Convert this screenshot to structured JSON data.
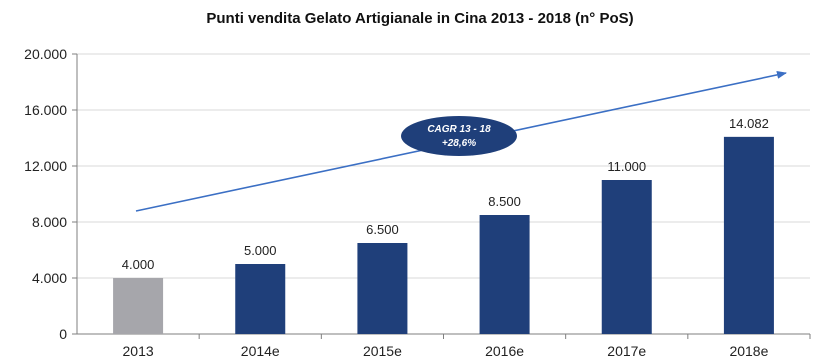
{
  "chart_data": {
    "type": "bar",
    "title": "Punti vendita Gelato Artigianale in Cina 2013 - 2018 (n° PoS)",
    "xlabel": "",
    "ylabel": "",
    "categories": [
      "2013",
      "2014e",
      "2015e",
      "2016e",
      "2017e",
      "2018e"
    ],
    "values": [
      4000,
      5000,
      6500,
      8500,
      11000,
      14082
    ],
    "value_labels": [
      "4.000",
      "5.000",
      "6.500",
      "8.500",
      "11.000",
      "14.082"
    ],
    "ylim": [
      0,
      20000
    ],
    "yticks": [
      0,
      4000,
      8000,
      12000,
      16000,
      20000
    ],
    "ytick_labels": [
      "0",
      "4.000",
      "8.000",
      "12.000",
      "16.000",
      "20.000"
    ],
    "grid": true,
    "annotation": {
      "line1": "CAGR 13 - 18",
      "line2": "+28,6%"
    },
    "colors": {
      "actual": "#a6a6ab",
      "estimate": "#1f3f7a",
      "trend_arrow": "#3b6fc4",
      "annotation_fill": "#1f3f7a",
      "grid": "#d9d9d9"
    }
  }
}
